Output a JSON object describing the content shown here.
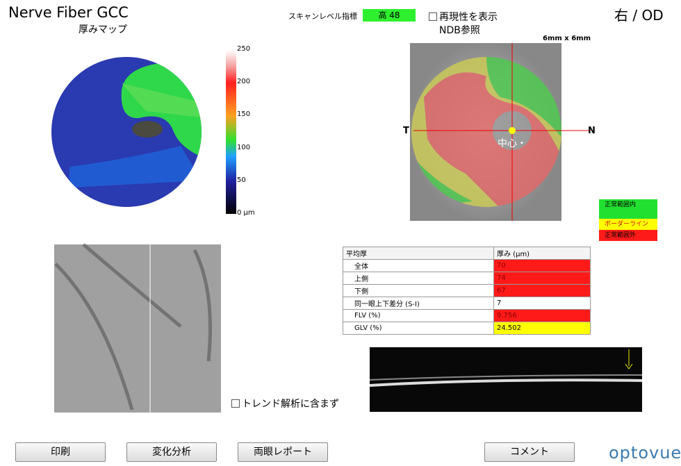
{
  "header": {
    "title": "Nerve Fiber GCC",
    "map_label": "厚みマップ",
    "scan_level_label": "スキャンレベル指標",
    "scan_level_value": "高 48",
    "reproducibility": "再現性を表示",
    "ndb": "NDB参照",
    "eye": "右 / OD",
    "scan_size": "6mm x 6mm"
  },
  "colorbar": {
    "labels": [
      "250",
      "200",
      "150",
      "100",
      "50",
      "0 µm"
    ]
  },
  "fundus": {
    "temporal": "T",
    "nasal": "N",
    "center": "中心・"
  },
  "legend": [
    {
      "label": "正常範囲内",
      "color": "#22e030"
    },
    {
      "label": "ボーダーライン",
      "color": "#ffff00"
    },
    {
      "label": "正常範囲外",
      "color": "#ff1a1a"
    }
  ],
  "table": {
    "header": [
      "平均厚",
      "厚み (µm)"
    ],
    "rows": [
      [
        "全体",
        70,
        "#ff1a1a"
      ],
      [
        "上側",
        74,
        "#ff1a1a"
      ],
      [
        "下側",
        67,
        "#ff1a1a"
      ],
      [
        "同一眼上下差分 (S-I)",
        7,
        "#ffffff"
      ],
      [
        "FLV (%)",
        9.756,
        "#ff1a1a"
      ],
      [
        "GLV (%)",
        24.502,
        "#ffff00"
      ]
    ]
  },
  "trend_checkbox": "トレンド解析に含まず",
  "buttons": [
    "印刷",
    "変化分析",
    "両眼レポート",
    "コメント"
  ],
  "logo": "optovue"
}
